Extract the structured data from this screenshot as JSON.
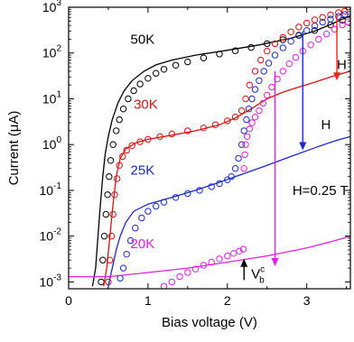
{
  "chart_data": {
    "type": "line",
    "xlabel": "Bias voltage (V)",
    "ylabel": "Current (μA)",
    "xlim": [
      0,
      3.55
    ],
    "ylim_log10": [
      -3.15,
      3
    ],
    "y_scale": "log",
    "x_ticks": [
      0,
      1,
      2,
      3
    ],
    "x_tick_labels": [
      "0",
      "1",
      "2",
      "3"
    ],
    "y_ticks_exp": [
      3,
      2,
      1,
      0,
      -1,
      -2,
      -3
    ],
    "y_tick_labels": [
      {
        "base": "10",
        "exp": "3"
      },
      {
        "base": "10",
        "exp": "2"
      },
      {
        "base": "10",
        "exp": "1"
      },
      {
        "base": "10",
        "exp": "0"
      },
      {
        "base": "10",
        "exp": "-1"
      },
      {
        "base": "10",
        "exp": "-2"
      },
      {
        "base": "10",
        "exp": "-3"
      }
    ],
    "grid": false,
    "series": [
      {
        "name": "50K",
        "color": "#000000",
        "line": [
          [
            0.3,
            0.0008
          ],
          [
            0.34,
            0.002
          ],
          [
            0.37,
            0.01
          ],
          [
            0.4,
            0.05
          ],
          [
            0.43,
            0.2
          ],
          [
            0.46,
            0.6
          ],
          [
            0.5,
            1.5
          ],
          [
            0.55,
            3.5
          ],
          [
            0.62,
            8
          ],
          [
            0.7,
            15
          ],
          [
            0.8,
            25
          ],
          [
            0.95,
            40
          ],
          [
            1.1,
            55
          ],
          [
            1.3,
            70
          ],
          [
            1.6,
            90
          ],
          [
            2.0,
            115
          ],
          [
            2.4,
            150
          ],
          [
            2.8,
            210
          ],
          [
            3.1,
            300
          ],
          [
            3.3,
            420
          ],
          [
            3.45,
            550
          ],
          [
            3.55,
            650
          ]
        ],
        "markers": [
          [
            0.41,
            0.001
          ],
          [
            0.43,
            0.003
          ],
          [
            0.45,
            0.01
          ],
          [
            0.47,
            0.03
          ],
          [
            0.49,
            0.08
          ],
          [
            0.51,
            0.2
          ],
          [
            0.53,
            0.45
          ],
          [
            0.56,
            1.0
          ],
          [
            0.6,
            2.0
          ],
          [
            0.64,
            3.5
          ],
          [
            0.69,
            6
          ],
          [
            0.75,
            10
          ],
          [
            0.82,
            15
          ],
          [
            0.9,
            21
          ],
          [
            1.0,
            28
          ],
          [
            1.1,
            36
          ],
          [
            1.2,
            44
          ],
          [
            1.35,
            54
          ],
          [
            1.5,
            64
          ],
          [
            1.7,
            78
          ],
          [
            1.9,
            95
          ],
          [
            2.1,
            112
          ],
          [
            2.3,
            132
          ],
          [
            2.5,
            160
          ],
          [
            2.7,
            195
          ],
          [
            2.9,
            245
          ],
          [
            3.1,
            310
          ],
          [
            3.3,
            410
          ],
          [
            3.45,
            520
          ]
        ]
      },
      {
        "name": "30K",
        "color": "#dd1111",
        "line": [
          [
            0.44,
            0.0008
          ],
          [
            0.48,
            0.002
          ],
          [
            0.52,
            0.01
          ],
          [
            0.56,
            0.05
          ],
          [
            0.6,
            0.2
          ],
          [
            0.65,
            0.5
          ],
          [
            0.72,
            0.8
          ],
          [
            0.85,
            1.1
          ],
          [
            1.0,
            1.3
          ],
          [
            1.3,
            1.6
          ],
          [
            1.6,
            2.0
          ],
          [
            1.9,
            2.7
          ],
          [
            2.1,
            3.8
          ],
          [
            2.3,
            6
          ],
          [
            2.5,
            10
          ],
          [
            2.7,
            14
          ],
          [
            2.9,
            18
          ],
          [
            3.1,
            23
          ],
          [
            3.3,
            30
          ],
          [
            3.5,
            38
          ],
          [
            3.55,
            40
          ]
        ],
        "markers": [
          [
            0.5,
            0.001
          ],
          [
            0.52,
            0.003
          ],
          [
            0.54,
            0.01
          ],
          [
            0.56,
            0.03
          ],
          [
            0.58,
            0.08
          ],
          [
            0.61,
            0.18
          ],
          [
            0.64,
            0.35
          ],
          [
            0.68,
            0.55
          ],
          [
            0.73,
            0.75
          ],
          [
            0.8,
            0.95
          ],
          [
            0.9,
            1.15
          ],
          [
            1.0,
            1.3
          ],
          [
            1.15,
            1.5
          ],
          [
            1.3,
            1.7
          ],
          [
            1.5,
            2.0
          ],
          [
            1.7,
            2.3
          ],
          [
            1.85,
            2.7
          ],
          [
            2.0,
            3.3
          ],
          [
            2.1,
            4.0
          ],
          [
            2.18,
            5.5
          ],
          [
            2.23,
            10
          ],
          [
            2.28,
            20
          ],
          [
            2.35,
            40
          ],
          [
            2.42,
            70
          ],
          [
            2.5,
            110
          ],
          [
            2.6,
            160
          ],
          [
            2.7,
            220
          ],
          [
            2.8,
            290
          ],
          [
            2.9,
            370
          ],
          [
            3.0,
            450
          ],
          [
            3.1,
            530
          ],
          [
            3.2,
            600
          ],
          [
            3.3,
            680
          ],
          [
            3.4,
            760
          ],
          [
            3.48,
            820
          ]
        ]
      },
      {
        "name": "25K",
        "color": "#1a2acc",
        "line": [
          [
            0.5,
            0.0008
          ],
          [
            0.55,
            0.002
          ],
          [
            0.6,
            0.005
          ],
          [
            0.65,
            0.01
          ],
          [
            0.72,
            0.02
          ],
          [
            0.82,
            0.035
          ],
          [
            1.0,
            0.05
          ],
          [
            1.3,
            0.07
          ],
          [
            1.6,
            0.1
          ],
          [
            1.9,
            0.15
          ],
          [
            2.2,
            0.23
          ],
          [
            2.5,
            0.35
          ],
          [
            2.8,
            0.55
          ],
          [
            3.1,
            0.85
          ],
          [
            3.35,
            1.2
          ],
          [
            3.55,
            1.5
          ]
        ],
        "markers": [
          [
            0.65,
            0.0012
          ],
          [
            0.69,
            0.002
          ],
          [
            0.73,
            0.004
          ],
          [
            0.78,
            0.008
          ],
          [
            0.84,
            0.015
          ],
          [
            0.92,
            0.025
          ],
          [
            1.0,
            0.035
          ],
          [
            1.1,
            0.045
          ],
          [
            1.2,
            0.055
          ],
          [
            1.35,
            0.07
          ],
          [
            1.5,
            0.085
          ],
          [
            1.65,
            0.1
          ],
          [
            1.8,
            0.12
          ],
          [
            1.9,
            0.14
          ],
          [
            2.0,
            0.17
          ],
          [
            2.05,
            0.2
          ],
          [
            2.1,
            0.3
          ],
          [
            2.14,
            0.5
          ],
          [
            2.18,
            1.0
          ],
          [
            2.21,
            2.0
          ],
          [
            2.24,
            3.5
          ],
          [
            2.27,
            6
          ],
          [
            2.31,
            10
          ],
          [
            2.35,
            16
          ],
          [
            2.4,
            25
          ],
          [
            2.46,
            40
          ],
          [
            2.52,
            60
          ],
          [
            2.6,
            90
          ],
          [
            2.7,
            130
          ],
          [
            2.8,
            180
          ],
          [
            2.9,
            240
          ],
          [
            3.0,
            310
          ],
          [
            3.1,
            390
          ],
          [
            3.2,
            470
          ],
          [
            3.3,
            550
          ],
          [
            3.4,
            630
          ],
          [
            3.48,
            700
          ]
        ]
      },
      {
        "name": "20K",
        "color": "#e020e0",
        "line": [
          [
            0.0,
            0.0013
          ],
          [
            0.5,
            0.0013
          ],
          [
            1.0,
            0.0016
          ],
          [
            1.5,
            0.002
          ],
          [
            2.0,
            0.0027
          ],
          [
            2.5,
            0.0037
          ],
          [
            3.0,
            0.0055
          ],
          [
            3.3,
            0.0075
          ],
          [
            3.55,
            0.01
          ]
        ],
        "markers": [
          [
            1.2,
            0.0008
          ],
          [
            1.3,
            0.001
          ],
          [
            1.4,
            0.0013
          ],
          [
            1.5,
            0.0016
          ],
          [
            1.6,
            0.0019
          ],
          [
            1.7,
            0.0023
          ],
          [
            1.8,
            0.0027
          ],
          [
            1.9,
            0.0032
          ],
          [
            2.0,
            0.0037
          ],
          [
            2.08,
            0.0042
          ],
          [
            2.15,
            0.0047
          ],
          [
            2.2,
            0.0052
          ],
          [
            2.21,
            0.3
          ],
          [
            2.22,
            0.6
          ],
          [
            2.23,
            1.0
          ],
          [
            2.25,
            1.5
          ],
          [
            2.28,
            2.2
          ],
          [
            2.31,
            3.0
          ],
          [
            2.35,
            4.0
          ],
          [
            2.4,
            5.5
          ],
          [
            2.45,
            8
          ],
          [
            2.5,
            12
          ],
          [
            2.56,
            18
          ],
          [
            2.63,
            27
          ],
          [
            2.7,
            40
          ],
          [
            2.78,
            58
          ],
          [
            2.86,
            80
          ],
          [
            2.95,
            110
          ],
          [
            3.05,
            150
          ],
          [
            3.15,
            200
          ],
          [
            3.25,
            260
          ],
          [
            3.35,
            330
          ],
          [
            3.45,
            410
          ],
          [
            3.52,
            480
          ]
        ]
      }
    ],
    "annotations": [
      {
        "text": "50K",
        "color": "#000000",
        "x": 0.78,
        "y": 160
      },
      {
        "text": "30K",
        "color": "#dd1111",
        "x": 0.82,
        "y": 6
      },
      {
        "text": "25K",
        "color": "#1a2acc",
        "x": 0.78,
        "y": 0.22
      },
      {
        "text": "20K",
        "color": "#e020e0",
        "x": 0.78,
        "y": 0.0055
      },
      {
        "text": "H",
        "color": "#000000",
        "x": 3.38,
        "y": 45
      },
      {
        "text": "H",
        "color": "#000000",
        "x": 3.18,
        "y": 2.2
      },
      {
        "text": "H=0.25 T",
        "color": "#000000",
        "x": 2.82,
        "y": 0.08
      }
    ],
    "vc_label": {
      "base": "V",
      "sub": "b",
      "sup": "c"
    },
    "arrows": [
      {
        "color": "#ee2222",
        "x": 3.38,
        "y_from": 650,
        "y_to": 25
      },
      {
        "color": "#1a2acc",
        "x": 2.95,
        "y_from": 300,
        "y_to": 0.75
      },
      {
        "color": "#e020e0",
        "x": 2.6,
        "y_from": 40,
        "y_to": 0.0022
      },
      {
        "color": "#000000",
        "x": 2.21,
        "y_from": 0.0011,
        "y_to": 0.0032
      }
    ]
  }
}
